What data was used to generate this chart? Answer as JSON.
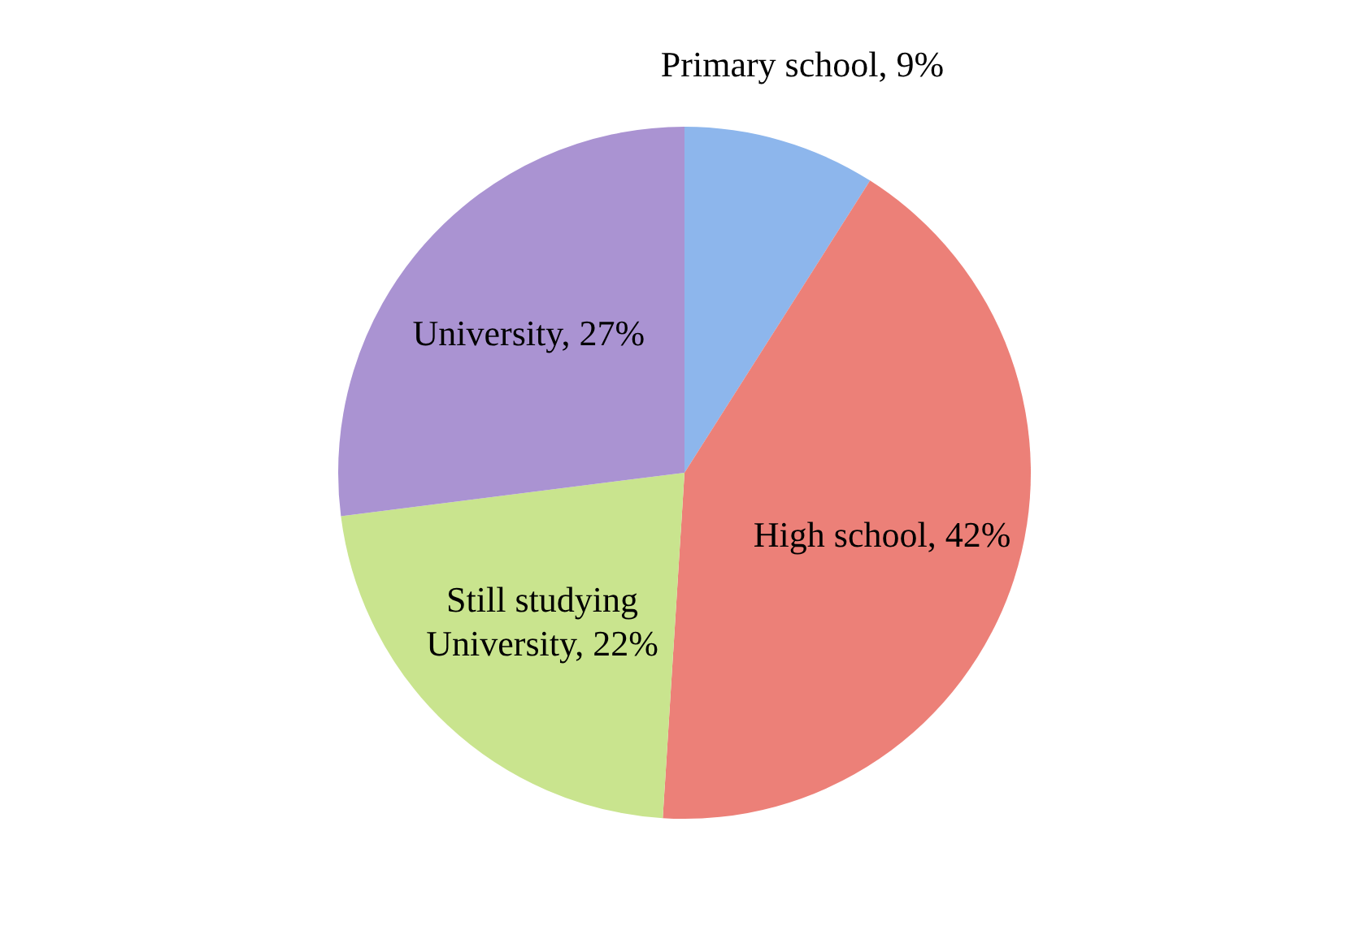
{
  "chart_data": {
    "type": "pie",
    "categories": [
      "Primary school",
      "High school",
      "Still studying University",
      "University"
    ],
    "values": [
      9,
      42,
      22,
      27
    ],
    "colors": [
      "#8db6ec",
      "#ec8078",
      "#c9e48e",
      "#aa93d2"
    ],
    "value_labels": [
      "9%",
      "42%",
      "22%",
      "27%"
    ],
    "legend": false
  }
}
